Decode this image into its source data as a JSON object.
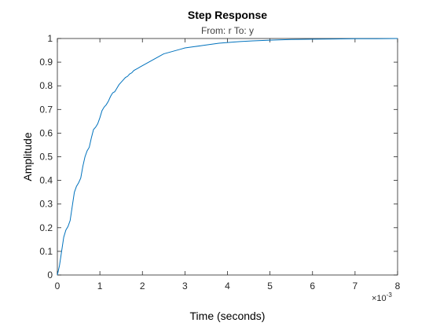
{
  "chart_data": {
    "type": "line",
    "title": "Step Response",
    "subtitle": "From: r  To: y",
    "xlabel": "Time (seconds)",
    "ylabel": "Amplitude",
    "x_exponent_base": "×10",
    "x_exponent_power": "-3",
    "xlim": [
      0,
      8
    ],
    "ylim": [
      0,
      1
    ],
    "xticks": [
      0,
      1,
      2,
      3,
      4,
      5,
      6,
      7,
      8
    ],
    "xtick_labels": [
      "0",
      "1",
      "2",
      "3",
      "4",
      "5",
      "6",
      "7",
      "8"
    ],
    "yticks": [
      0,
      0.1,
      0.2,
      0.3,
      0.4,
      0.5,
      0.6,
      0.7,
      0.8,
      0.9,
      1
    ],
    "ytick_labels": [
      "0",
      "0.1",
      "0.2",
      "0.3",
      "0.4",
      "0.5",
      "0.6",
      "0.7",
      "0.8",
      "0.9",
      "1"
    ],
    "grid": false,
    "legend": "none",
    "series": [
      {
        "color": "#0072BD",
        "x": [
          0,
          0.05,
          0.1,
          0.15,
          0.2,
          0.25,
          0.3,
          0.35,
          0.4,
          0.45,
          0.5,
          0.55,
          0.6,
          0.65,
          0.7,
          0.75,
          0.8,
          0.85,
          0.9,
          0.95,
          1.0,
          1.05,
          1.1,
          1.15,
          1.2,
          1.25,
          1.3,
          1.35,
          1.4,
          1.45,
          1.5,
          1.55,
          1.6,
          1.65,
          1.7,
          1.75,
          1.8,
          1.85,
          1.9,
          1.95,
          2.0,
          2.1,
          2.2,
          2.3,
          2.4,
          2.5,
          2.6,
          2.7,
          2.8,
          2.9,
          3.0,
          3.2,
          3.4,
          3.6,
          3.8,
          4.0,
          4.3,
          4.6,
          5.0,
          5.5,
          6.0,
          6.5,
          7.0,
          7.5,
          8.0
        ],
        "y": [
          0,
          0.04,
          0.1,
          0.16,
          0.19,
          0.205,
          0.23,
          0.29,
          0.35,
          0.375,
          0.39,
          0.41,
          0.46,
          0.5,
          0.525,
          0.54,
          0.58,
          0.615,
          0.625,
          0.64,
          0.665,
          0.695,
          0.71,
          0.72,
          0.735,
          0.755,
          0.77,
          0.775,
          0.79,
          0.805,
          0.815,
          0.825,
          0.835,
          0.84,
          0.85,
          0.855,
          0.865,
          0.87,
          0.875,
          0.88,
          0.885,
          0.895,
          0.905,
          0.915,
          0.925,
          0.935,
          0.94,
          0.945,
          0.95,
          0.955,
          0.96,
          0.965,
          0.97,
          0.975,
          0.98,
          0.983,
          0.987,
          0.99,
          0.993,
          0.996,
          0.997,
          0.998,
          0.999,
          0.999,
          1.0
        ]
      }
    ]
  }
}
